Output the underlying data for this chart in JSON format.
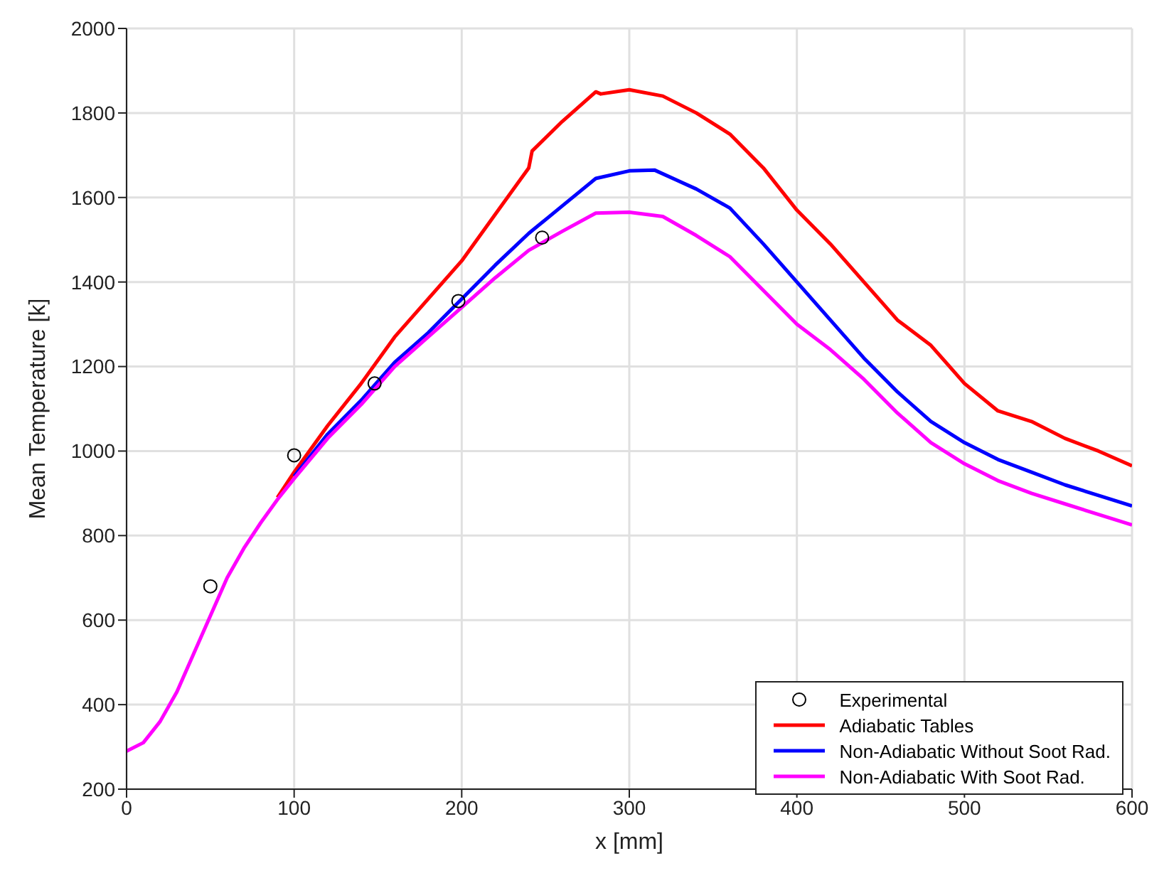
{
  "chart_data": {
    "type": "line",
    "xlabel": "x [mm]",
    "ylabel": "Mean Temperature [k]",
    "xlim": [
      0,
      600
    ],
    "xticks": [
      0,
      100,
      200,
      300,
      400,
      500,
      600
    ],
    "ylim": [
      200,
      2000
    ],
    "yticks": [
      200,
      400,
      600,
      800,
      1000,
      1200,
      1400,
      1600,
      1800,
      2000
    ],
    "grid": true,
    "legend": "bottom right",
    "line_style": "solid",
    "series": [
      {
        "name": "Experimental",
        "type": "scatter",
        "marker": "circle",
        "color": "#000000",
        "x": [
          50,
          100,
          148,
          198,
          248
        ],
        "values": [
          680,
          990,
          1160,
          1355,
          1505
        ]
      },
      {
        "name": "Adiabatic Tables",
        "color": "#ff0000",
        "x": [
          90,
          100,
          120,
          140,
          160,
          180,
          200,
          220,
          240,
          242,
          260,
          280,
          283,
          300,
          320,
          340,
          360,
          380,
          400,
          420,
          440,
          460,
          480,
          500,
          520,
          540,
          560,
          580,
          600
        ],
        "values": [
          890,
          950,
          1060,
          1160,
          1270,
          1360,
          1450,
          1560,
          1670,
          1710,
          1780,
          1850,
          1845,
          1855,
          1840,
          1800,
          1750,
          1670,
          1570,
          1490,
          1400,
          1310,
          1250,
          1160,
          1095,
          1070,
          1030,
          1000,
          965
        ]
      },
      {
        "name": "Non-Adiabatic Without Soot Rad.",
        "color": "#0000ff",
        "x": [
          100,
          120,
          140,
          160,
          180,
          200,
          220,
          240,
          260,
          280,
          300,
          315,
          340,
          360,
          380,
          400,
          420,
          440,
          460,
          480,
          500,
          520,
          540,
          560,
          580,
          600
        ],
        "values": [
          940,
          1040,
          1120,
          1210,
          1280,
          1360,
          1440,
          1515,
          1580,
          1645,
          1663,
          1665,
          1620,
          1575,
          1490,
          1400,
          1310,
          1220,
          1140,
          1070,
          1020,
          980,
          950,
          920,
          895,
          870
        ]
      },
      {
        "name": "Non-Adiabatic With Soot Rad.",
        "color": "#ff00ff",
        "x": [
          0,
          10,
          20,
          30,
          40,
          50,
          60,
          70,
          80,
          90,
          100,
          120,
          140,
          160,
          180,
          200,
          220,
          240,
          260,
          280,
          300,
          320,
          340,
          360,
          380,
          400,
          420,
          440,
          460,
          480,
          500,
          520,
          540,
          560,
          580,
          600
        ],
        "values": [
          290,
          310,
          360,
          430,
          520,
          610,
          700,
          770,
          830,
          885,
          935,
          1030,
          1110,
          1200,
          1270,
          1340,
          1410,
          1475,
          1520,
          1563,
          1565,
          1555,
          1510,
          1460,
          1380,
          1300,
          1240,
          1170,
          1090,
          1020,
          970,
          930,
          900,
          875,
          850,
          825
        ]
      }
    ]
  }
}
